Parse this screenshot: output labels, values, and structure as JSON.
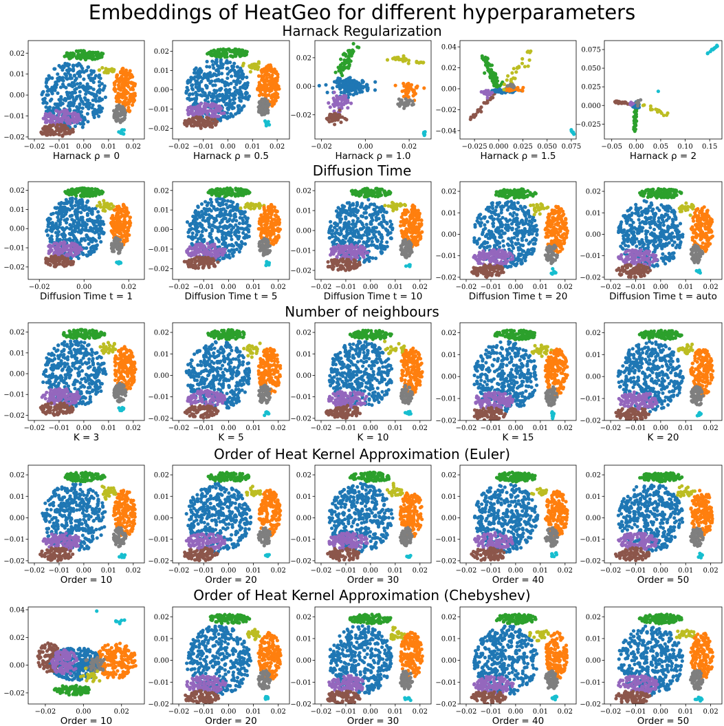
{
  "title": "Embeddings of HeatGeo for different hyperparameters",
  "row_titles": [
    "Harnack Regularization",
    "Diffusion Time",
    "Number of neighbours",
    "Order of Heat Kernel Approximation (Euler)",
    "Order of Heat Kernel Approximation (Chebyshev)"
  ],
  "colors": {
    "blue": "#1f77b4",
    "orange": "#ff7f0e",
    "green": "#2ca02c",
    "purple": "#9467bd",
    "brown": "#8c564b",
    "gray": "#7f7f7f",
    "olive": "#bcbd22",
    "cyan": "#17becf"
  },
  "chart_data": [
    {
      "type": "scatter",
      "row": 0,
      "xlabel": "Harnack ρ = 0",
      "layout": "standard",
      "xlim": [
        -0.0225,
        0.0245
      ],
      "ylim": [
        -0.021,
        0.026
      ],
      "xticks": [
        -0.02,
        -0.01,
        0.0,
        0.01,
        0.02
      ],
      "xtick_labels": [
        "−0.02",
        "−0.01",
        "0.00",
        "0.01",
        "0.02"
      ],
      "yticks": [
        -0.02,
        -0.01,
        0.0,
        0.01,
        0.02
      ],
      "ytick_labels": [
        "−0.02",
        "−0.01",
        "0.00",
        "0.01",
        "0.02"
      ]
    },
    {
      "type": "scatter",
      "row": 0,
      "xlabel": "Harnack ρ = 0.5",
      "layout": "standard",
      "xlim": [
        -0.0225,
        0.025
      ],
      "ylim": [
        -0.0255,
        0.0255
      ],
      "xticks": [
        -0.02,
        -0.01,
        0.0,
        0.01,
        0.02
      ],
      "xtick_labels": [
        "−0.02",
        "−0.01",
        "0.00",
        "0.01",
        "0.02"
      ],
      "yticks": [
        -0.02,
        -0.01,
        0.0,
        0.01,
        0.02
      ],
      "ytick_labels": [
        "−0.02",
        "−0.01",
        "0.00",
        "0.01",
        "0.02"
      ]
    },
    {
      "type": "scatter",
      "row": 0,
      "xlabel": "Harnack ρ = 1.0",
      "layout": "rho1",
      "xlim": [
        -0.023,
        0.03
      ],
      "ylim": [
        -0.037,
        0.032
      ],
      "xticks": [
        -0.02,
        0.0,
        0.02
      ],
      "xtick_labels": [
        "−0.02",
        "0.00",
        "0.02"
      ],
      "yticks": [
        -0.02,
        0.0,
        0.02
      ],
      "ytick_labels": [
        "−0.02",
        "0.00",
        "0.02"
      ]
    },
    {
      "type": "scatter",
      "row": 0,
      "xlabel": "Harnack ρ = 1.5",
      "layout": "rho15",
      "xlim": [
        -0.04,
        0.08
      ],
      "ylim": [
        -0.048,
        0.046
      ],
      "xticks": [
        -0.025,
        0.0,
        0.025,
        0.05,
        0.075
      ],
      "xtick_labels": [
        "−0.025",
        "0.000",
        "0.025",
        "0.050",
        "0.075"
      ],
      "yticks": [
        -0.04,
        -0.02,
        0.0,
        0.02,
        0.04
      ],
      "ytick_labels": [
        "−0.04",
        "−0.02",
        "0.00",
        "0.02",
        "0.04"
      ]
    },
    {
      "type": "scatter",
      "row": 0,
      "xlabel": "Harnack ρ = 2",
      "layout": "rho2",
      "xlim": [
        -0.065,
        0.175
      ],
      "ylim": [
        -0.045,
        0.087
      ],
      "xticks": [
        -0.05,
        0.0,
        0.05,
        0.1,
        0.15
      ],
      "xtick_labels": [
        "−0.05",
        "0.00",
        "0.05",
        "0.10",
        "0.15"
      ],
      "yticks": [
        -0.025,
        0.0,
        0.025,
        0.05,
        0.075
      ],
      "ytick_labels": [
        "−0.025",
        "0.000",
        "0.025",
        "0.050",
        "0.075"
      ]
    },
    {
      "type": "scatter",
      "row": 1,
      "xlabel": "Diffusion Time t = 1",
      "layout": "standard",
      "xlim": [
        -0.025,
        0.027
      ],
      "ylim": [
        -0.0265,
        0.0245
      ],
      "xticks": [
        -0.02,
        0.0,
        0.02
      ],
      "xtick_labels": [
        "−0.02",
        "0.00",
        "0.02"
      ],
      "yticks": [
        -0.02,
        -0.01,
        0.0,
        0.01,
        0.02
      ],
      "ytick_labels": [
        "−0.02",
        "−0.01",
        "0.00",
        "0.01",
        "0.02"
      ]
    },
    {
      "type": "scatter",
      "row": 1,
      "xlabel": "Diffusion Time t = 5",
      "layout": "standard",
      "xlim": [
        -0.0225,
        0.0245
      ],
      "ylim": [
        -0.0255,
        0.0245
      ],
      "xticks": [
        -0.02,
        -0.01,
        0.0,
        0.01,
        0.02
      ],
      "xtick_labels": [
        "−0.02",
        "−0.01",
        "0.00",
        "0.01",
        "0.02"
      ],
      "yticks": [
        -0.02,
        -0.01,
        0.0,
        0.01,
        0.02
      ],
      "ytick_labels": [
        "−0.02",
        "−0.01",
        "0.00",
        "0.01",
        "0.02"
      ]
    },
    {
      "type": "scatter",
      "row": 1,
      "xlabel": "Diffusion Time t = 10",
      "layout": "standard",
      "xlim": [
        -0.0225,
        0.0245
      ],
      "ylim": [
        -0.0245,
        0.0245
      ],
      "xticks": [
        -0.02,
        -0.01,
        0.0,
        0.01,
        0.02
      ],
      "xtick_labels": [
        "−0.02",
        "−0.01",
        "0.00",
        "0.01",
        "0.02"
      ],
      "yticks": [
        -0.02,
        -0.01,
        0.0,
        0.01,
        0.02
      ],
      "ytick_labels": [
        "−0.02",
        "−0.01",
        "0.00",
        "0.01",
        "0.02"
      ]
    },
    {
      "type": "scatter",
      "row": 1,
      "xlabel": "Diffusion Time t = 20",
      "layout": "standard",
      "xlim": [
        -0.0225,
        0.0245
      ],
      "ylim": [
        -0.021,
        0.0245
      ],
      "xticks": [
        -0.02,
        -0.01,
        0.0,
        0.01,
        0.02
      ],
      "xtick_labels": [
        "−0.02",
        "−0.01",
        "0.00",
        "0.01",
        "0.02"
      ],
      "yticks": [
        -0.02,
        -0.01,
        0.0,
        0.01,
        0.02
      ],
      "ytick_labels": [
        "−0.02",
        "−0.01",
        "0.00",
        "0.01",
        "0.02"
      ]
    },
    {
      "type": "scatter",
      "row": 1,
      "xlabel": "Diffusion Time t = auto",
      "layout": "standard",
      "xlim": [
        -0.0225,
        0.0245
      ],
      "ylim": [
        -0.021,
        0.0245
      ],
      "xticks": [
        -0.02,
        -0.01,
        0.0,
        0.01,
        0.02
      ],
      "xtick_labels": [
        "−0.02",
        "−0.01",
        "0.00",
        "0.01",
        "0.02"
      ],
      "yticks": [
        -0.02,
        -0.01,
        0.0,
        0.01,
        0.02
      ],
      "ytick_labels": [
        "−0.02",
        "−0.01",
        "0.00",
        "0.01",
        "0.02"
      ]
    },
    {
      "type": "scatter",
      "row": 2,
      "xlabel": "K = 3",
      "layout": "standard",
      "xlim": [
        -0.0225,
        0.0245
      ],
      "ylim": [
        -0.0225,
        0.0245
      ],
      "xticks": [
        -0.02,
        -0.01,
        0.0,
        0.01,
        0.02
      ],
      "xtick_labels": [
        "−0.02",
        "−0.01",
        "0.00",
        "0.01",
        "0.02"
      ],
      "yticks": [
        -0.02,
        -0.01,
        0.0,
        0.01,
        0.02
      ],
      "ytick_labels": [
        "−0.02",
        "−0.01",
        "0.00",
        "0.01",
        "0.02"
      ]
    },
    {
      "type": "scatter",
      "row": 2,
      "xlabel": "K = 5",
      "layout": "standard",
      "xlim": [
        -0.0225,
        0.0245
      ],
      "ylim": [
        -0.021,
        0.0245
      ],
      "xticks": [
        -0.02,
        -0.01,
        0.0,
        0.01,
        0.02
      ],
      "xtick_labels": [
        "−0.02",
        "−0.01",
        "0.00",
        "0.01",
        "0.02"
      ],
      "yticks": [
        -0.02,
        -0.01,
        0.0,
        0.01,
        0.02
      ],
      "ytick_labels": [
        "−0.02",
        "−0.01",
        "0.00",
        "0.01",
        "0.02"
      ]
    },
    {
      "type": "scatter",
      "row": 2,
      "xlabel": "K = 10",
      "layout": "standard",
      "xlim": [
        -0.0225,
        0.0245
      ],
      "ylim": [
        -0.021,
        0.0245
      ],
      "xticks": [
        -0.02,
        -0.01,
        0.0,
        0.01,
        0.02
      ],
      "xtick_labels": [
        "−0.02",
        "−0.01",
        "0.00",
        "0.01",
        "0.02"
      ],
      "yticks": [
        -0.02,
        -0.01,
        0.0,
        0.01,
        0.02
      ],
      "ytick_labels": [
        "−0.02",
        "−0.01",
        "0.00",
        "0.01",
        "0.02"
      ]
    },
    {
      "type": "scatter",
      "row": 2,
      "xlabel": "K = 15",
      "layout": "standard",
      "xlim": [
        -0.0225,
        0.0245
      ],
      "ylim": [
        -0.02,
        0.0245
      ],
      "xticks": [
        -0.02,
        -0.01,
        0.0,
        0.01,
        0.02
      ],
      "xtick_labels": [
        "−0.02",
        "−0.01",
        "0.00",
        "0.01",
        "0.02"
      ],
      "yticks": [
        -0.02,
        -0.01,
        0.0,
        0.01,
        0.02
      ],
      "ytick_labels": [
        "−0.02",
        "−0.01",
        "0.00",
        "0.01",
        "0.02"
      ]
    },
    {
      "type": "scatter",
      "row": 2,
      "xlabel": "K = 20",
      "layout": "standard",
      "xlim": [
        -0.0225,
        0.0245
      ],
      "ylim": [
        -0.02,
        0.0245
      ],
      "xticks": [
        -0.02,
        -0.01,
        0.0,
        0.01,
        0.02
      ],
      "xtick_labels": [
        "−0.02",
        "−0.01",
        "0.00",
        "0.01",
        "0.02"
      ],
      "yticks": [
        -0.02,
        -0.01,
        0.0,
        0.01,
        0.02
      ],
      "ytick_labels": [
        "−0.02",
        "−0.01",
        "0.00",
        "0.01",
        "0.02"
      ]
    },
    {
      "type": "scatter",
      "row": 3,
      "xlabel": "Order = 10",
      "layout": "standard",
      "xlim": [
        -0.0225,
        0.0245
      ],
      "ylim": [
        -0.021,
        0.0245
      ],
      "xticks": [
        -0.02,
        -0.01,
        0.0,
        0.01,
        0.02
      ],
      "xtick_labels": [
        "−0.02",
        "−0.01",
        "0.00",
        "0.01",
        "0.02"
      ],
      "yticks": [
        -0.02,
        -0.01,
        0.0,
        0.01,
        0.02
      ],
      "ytick_labels": [
        "−0.02",
        "−0.01",
        "0.00",
        "0.01",
        "0.02"
      ]
    },
    {
      "type": "scatter",
      "row": 3,
      "xlabel": "Order = 20",
      "layout": "standard",
      "xlim": [
        -0.0225,
        0.0245
      ],
      "ylim": [
        -0.021,
        0.0245
      ],
      "xticks": [
        -0.02,
        -0.01,
        0.0,
        0.01,
        0.02
      ],
      "xtick_labels": [
        "−0.02",
        "−0.01",
        "0.00",
        "0.01",
        "0.02"
      ],
      "yticks": [
        -0.02,
        -0.01,
        0.0,
        0.01,
        0.02
      ],
      "ytick_labels": [
        "−0.02",
        "−0.01",
        "0.00",
        "0.01",
        "0.02"
      ]
    },
    {
      "type": "scatter",
      "row": 3,
      "xlabel": "Order = 30",
      "layout": "standard",
      "xlim": [
        -0.0225,
        0.0245
      ],
      "ylim": [
        -0.021,
        0.0245
      ],
      "xticks": [
        -0.02,
        -0.01,
        0.0,
        0.01,
        0.02
      ],
      "xtick_labels": [
        "−0.02",
        "−0.01",
        "0.00",
        "0.01",
        "0.02"
      ],
      "yticks": [
        -0.02,
        -0.01,
        0.0,
        0.01,
        0.02
      ],
      "ytick_labels": [
        "−0.02",
        "−0.01",
        "0.00",
        "0.01",
        "0.02"
      ]
    },
    {
      "type": "scatter",
      "row": 3,
      "xlabel": "Order = 40",
      "layout": "standard",
      "xlim": [
        -0.0225,
        0.0245
      ],
      "ylim": [
        -0.021,
        0.0245
      ],
      "xticks": [
        -0.02,
        -0.01,
        0.0,
        0.01,
        0.02
      ],
      "xtick_labels": [
        "−0.02",
        "−0.01",
        "0.00",
        "0.01",
        "0.02"
      ],
      "yticks": [
        -0.02,
        -0.01,
        0.0,
        0.01,
        0.02
      ],
      "ytick_labels": [
        "−0.02",
        "−0.01",
        "0.00",
        "0.01",
        "0.02"
      ]
    },
    {
      "type": "scatter",
      "row": 3,
      "xlabel": "Order = 50",
      "layout": "standard",
      "xlim": [
        -0.0225,
        0.0245
      ],
      "ylim": [
        -0.021,
        0.0245
      ],
      "xticks": [
        -0.02,
        -0.01,
        0.0,
        0.01,
        0.02
      ],
      "xtick_labels": [
        "−0.02",
        "−0.01",
        "0.00",
        "0.01",
        "0.02"
      ],
      "yticks": [
        -0.02,
        -0.01,
        0.0,
        0.01,
        0.02
      ],
      "ytick_labels": [
        "−0.02",
        "−0.01",
        "0.00",
        "0.01",
        "0.02"
      ]
    },
    {
      "type": "scatter",
      "row": 4,
      "xlabel": "Order = 10",
      "layout": "cheb10",
      "xlim": [
        -0.029,
        0.032
      ],
      "ylim": [
        -0.028,
        0.042
      ],
      "xticks": [
        -0.02,
        0.0,
        0.02
      ],
      "xtick_labels": [
        "−0.02",
        "0.00",
        "0.02"
      ],
      "yticks": [
        -0.02,
        0.0,
        0.02,
        0.04
      ],
      "ytick_labels": [
        "−0.02",
        "0.00",
        "0.02",
        "0.04"
      ]
    },
    {
      "type": "scatter",
      "row": 4,
      "xlabel": "Order = 20",
      "layout": "standard",
      "xlim": [
        -0.0225,
        0.0245
      ],
      "ylim": [
        -0.02,
        0.0245
      ],
      "xticks": [
        -0.02,
        -0.01,
        0.0,
        0.01,
        0.02
      ],
      "xtick_labels": [
        "−0.02",
        "−0.01",
        "0.00",
        "0.01",
        "0.02"
      ],
      "yticks": [
        -0.02,
        -0.01,
        0.0,
        0.01,
        0.02
      ],
      "ytick_labels": [
        "−0.02",
        "−0.01",
        "0.00",
        "0.01",
        "0.02"
      ]
    },
    {
      "type": "scatter",
      "row": 4,
      "xlabel": "Order = 30",
      "layout": "standard",
      "xlim": [
        -0.0225,
        0.0245
      ],
      "ylim": [
        -0.02,
        0.0245
      ],
      "xticks": [
        -0.02,
        -0.01,
        0.0,
        0.01,
        0.02
      ],
      "xtick_labels": [
        "−0.02",
        "−0.01",
        "0.00",
        "0.01",
        "0.02"
      ],
      "yticks": [
        -0.02,
        -0.01,
        0.0,
        0.01,
        0.02
      ],
      "ytick_labels": [
        "−0.02",
        "−0.01",
        "0.00",
        "0.01",
        "0.02"
      ]
    },
    {
      "type": "scatter",
      "row": 4,
      "xlabel": "Order = 40",
      "layout": "standard",
      "xlim": [
        -0.0225,
        0.0245
      ],
      "ylim": [
        -0.02,
        0.0245
      ],
      "xticks": [
        -0.02,
        -0.01,
        0.0,
        0.01,
        0.02
      ],
      "xtick_labels": [
        "−0.02",
        "−0.01",
        "0.00",
        "0.01",
        "0.02"
      ],
      "yticks": [
        -0.02,
        -0.01,
        0.0,
        0.01,
        0.02
      ],
      "ytick_labels": [
        "−0.02",
        "−0.01",
        "0.00",
        "0.01",
        "0.02"
      ]
    },
    {
      "type": "scatter",
      "row": 4,
      "xlabel": "Order = 50",
      "layout": "standard",
      "xlim": [
        -0.0225,
        0.0245
      ],
      "ylim": [
        -0.02,
        0.0245
      ],
      "xticks": [
        -0.02,
        -0.01,
        0.0,
        0.01,
        0.02
      ],
      "xtick_labels": [
        "−0.02",
        "−0.01",
        "0.00",
        "0.01",
        "0.02"
      ],
      "yticks": [
        -0.02,
        -0.01,
        0.0,
        0.01,
        0.02
      ],
      "ytick_labels": [
        "−0.02",
        "−0.01",
        "0.00",
        "0.01",
        "0.02"
      ]
    }
  ]
}
